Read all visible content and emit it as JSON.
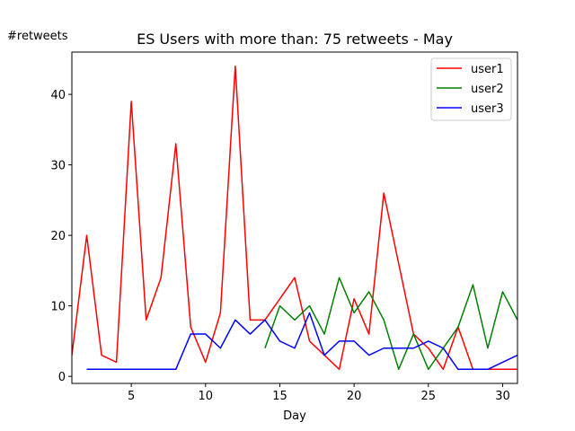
{
  "chart_data": {
    "type": "line",
    "title": "ES Users with more than: 75 retweets - May",
    "xlabel": "Day",
    "ylabel": "#retweets",
    "xlim": [
      1,
      31
    ],
    "ylim": [
      -1,
      46
    ],
    "xticks": [
      5,
      10,
      15,
      20,
      25,
      30
    ],
    "yticks": [
      0,
      10,
      20,
      30,
      40
    ],
    "grid": false,
    "legend_position": "top-right",
    "series": [
      {
        "name": "user1",
        "color": "#ff0000",
        "x": [
          1,
          2,
          3,
          4,
          5,
          6,
          7,
          8,
          9,
          10,
          11,
          12,
          13,
          14,
          15,
          16,
          17,
          18,
          19,
          20,
          21,
          22,
          23,
          24,
          25,
          26,
          27,
          28,
          29,
          30,
          31
        ],
        "y": [
          3,
          20,
          3,
          2,
          39,
          8,
          14,
          33,
          7,
          2,
          9,
          44,
          8,
          8,
          11,
          14,
          5,
          3,
          1,
          11,
          6,
          26,
          16,
          6,
          4,
          1,
          7,
          1,
          1,
          1,
          1
        ]
      },
      {
        "name": "user2",
        "color": "#008000",
        "x": [
          14,
          15,
          16,
          17,
          18,
          19,
          20,
          21,
          22,
          23,
          24,
          25,
          26,
          27,
          28,
          29,
          30,
          31
        ],
        "y": [
          4,
          10,
          8,
          10,
          6,
          14,
          9,
          12,
          8,
          1,
          6,
          1,
          4,
          7,
          13,
          4,
          12,
          8
        ]
      },
      {
        "name": "user3",
        "color": "#0000ff",
        "x": [
          2,
          3,
          4,
          5,
          6,
          7,
          8,
          9,
          10,
          11,
          12,
          13,
          14,
          15,
          16,
          17,
          18,
          19,
          20,
          21,
          22,
          23,
          24,
          25,
          26,
          27,
          28,
          29,
          30,
          31
        ],
        "y": [
          1,
          1,
          1,
          1,
          1,
          1,
          1,
          6,
          6,
          4,
          8,
          6,
          8,
          5,
          4,
          9,
          3,
          5,
          5,
          3,
          4,
          4,
          4,
          5,
          4,
          1,
          1,
          1,
          2,
          3
        ]
      }
    ]
  }
}
